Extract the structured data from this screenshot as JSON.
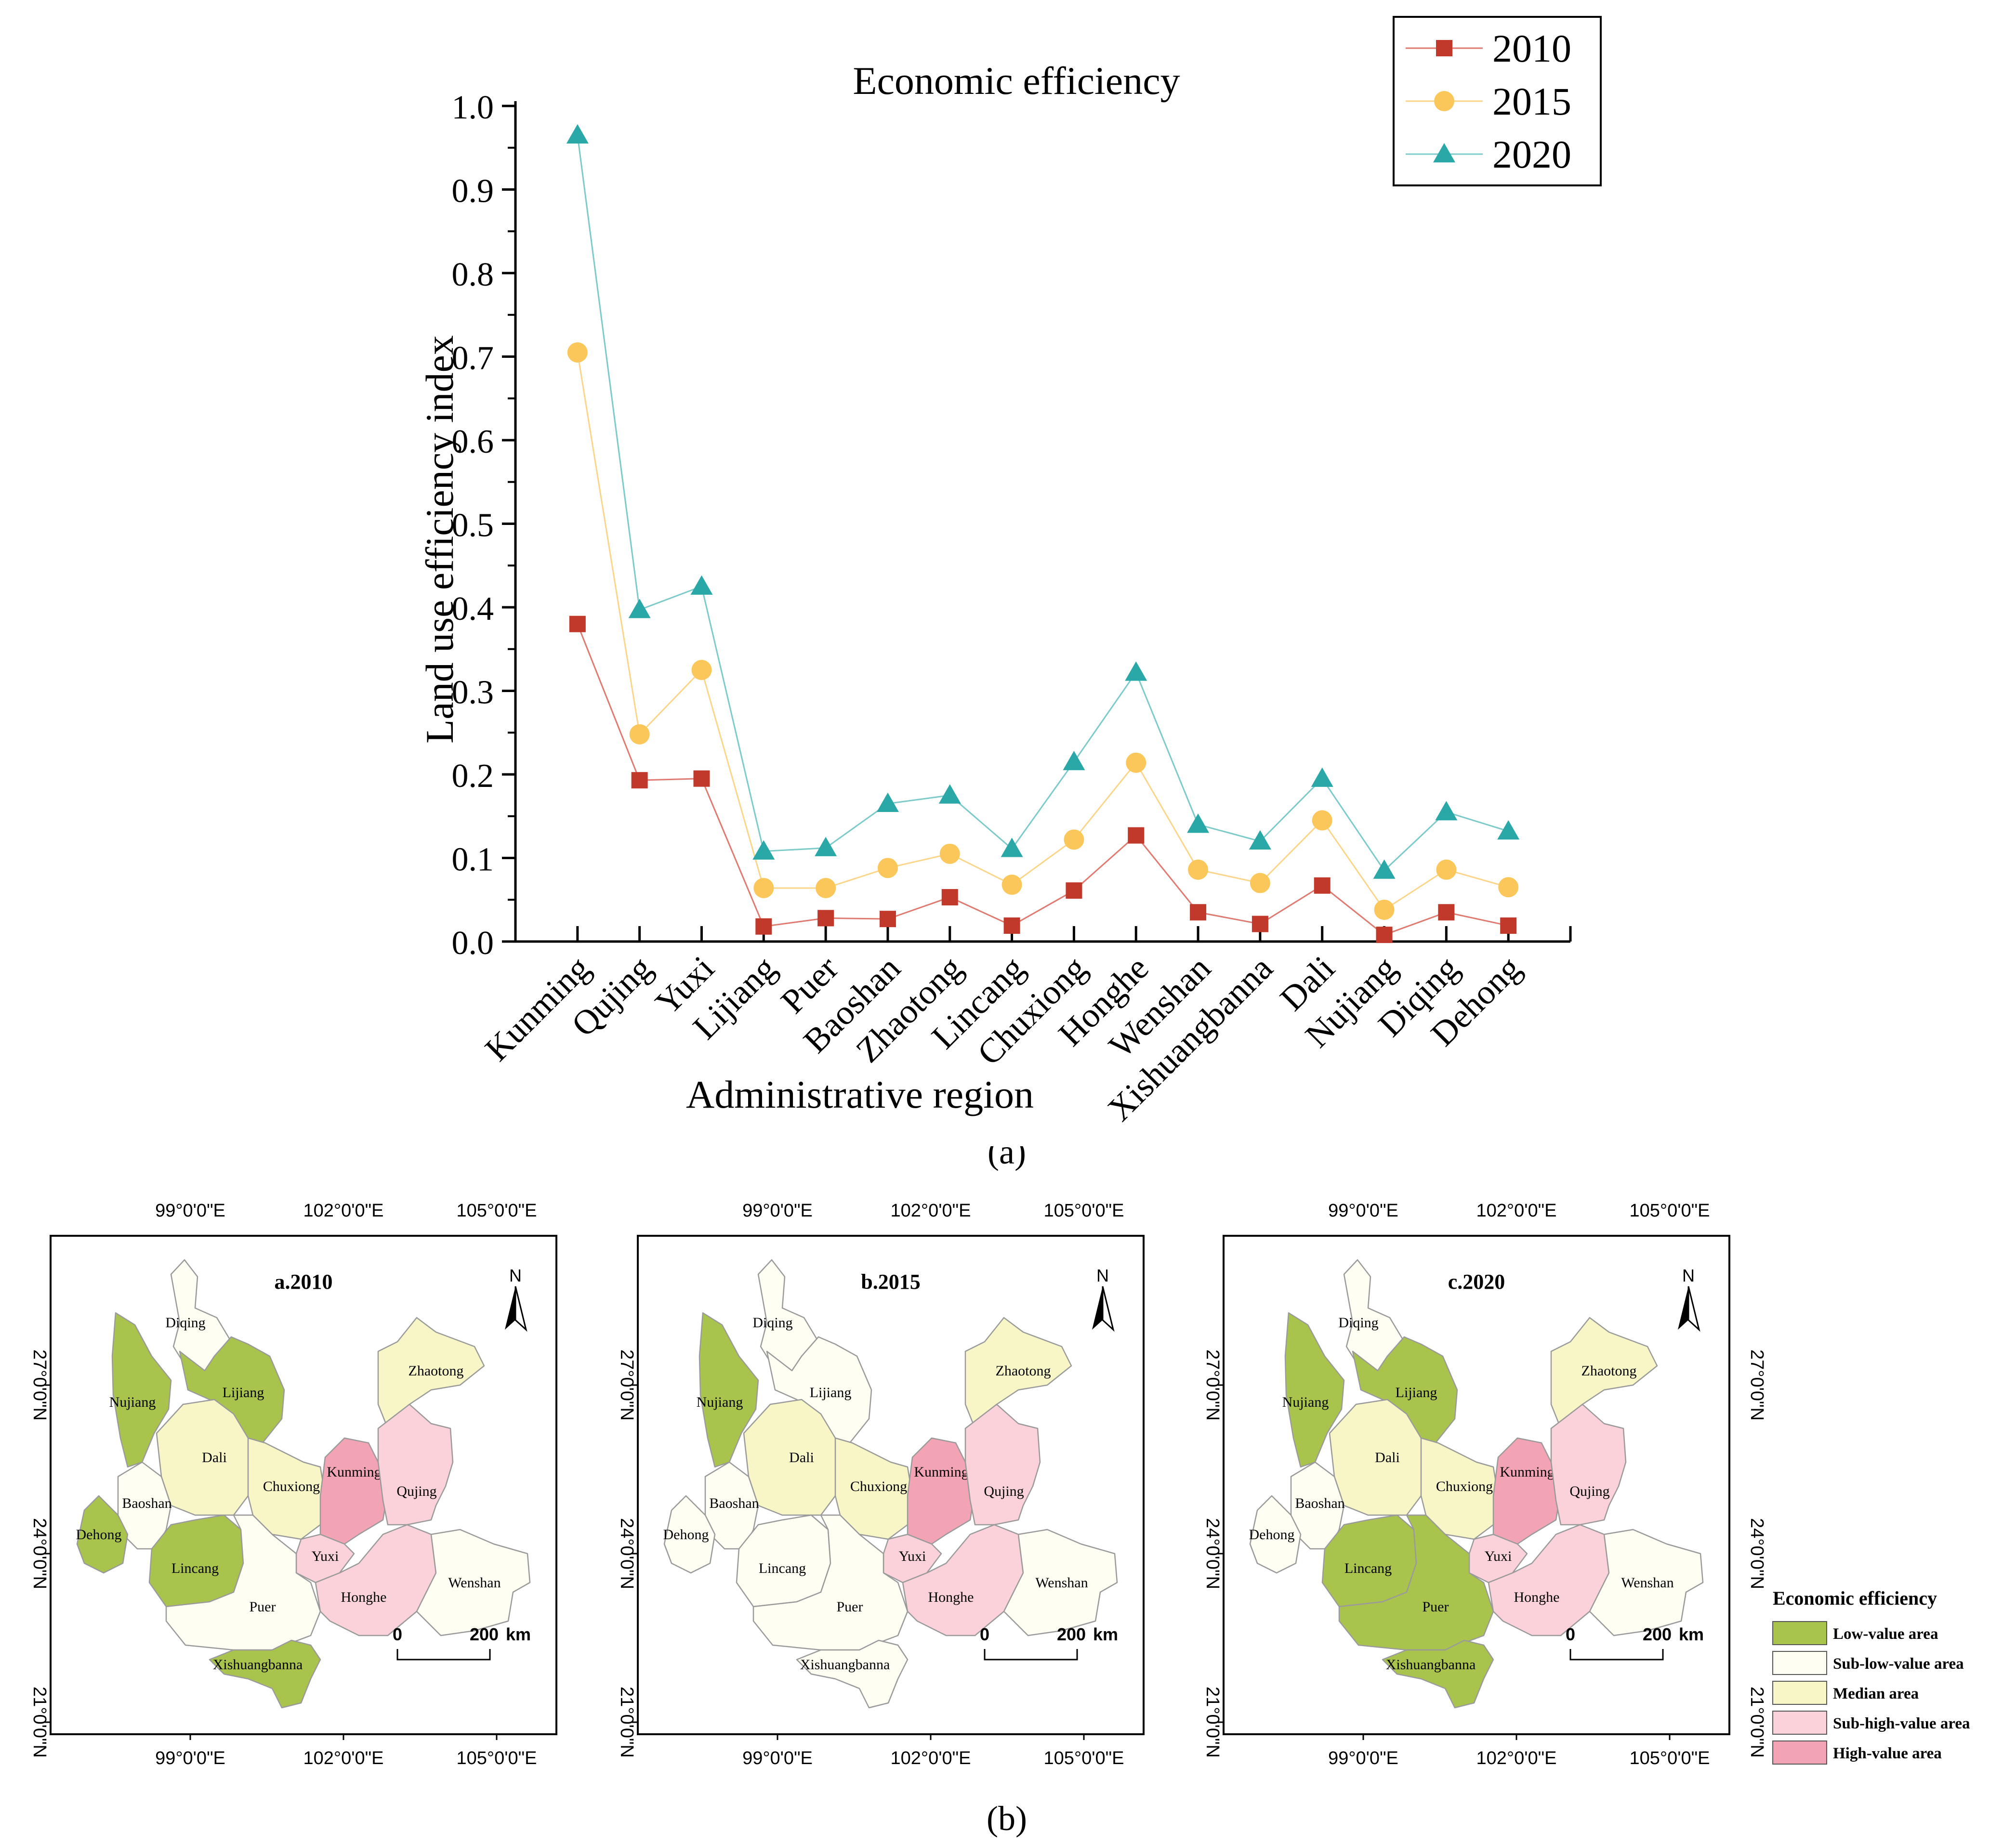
{
  "chart_data": {
    "type": "line",
    "title": "Economic efficiency",
    "xlabel": "Administrative region",
    "ylabel": "Land use efficiency index",
    "ylim": [
      0,
      1.0
    ],
    "yticks": [
      "0.0",
      "0.1",
      "0.2",
      "0.3",
      "0.4",
      "0.5",
      "0.6",
      "0.7",
      "0.8",
      "0.9",
      "1.0"
    ],
    "categories": [
      "Kunming",
      "Qujing",
      "Yuxi",
      "Lijiang",
      "Puer",
      "Baoshan",
      "Zhaotong",
      "Lincang",
      "Chuxiong",
      "Honghe",
      "Wenshan",
      "Xishuangbanna",
      "Dali",
      "Nujiang",
      "Diqing",
      "Dehong"
    ],
    "series": [
      {
        "name": "2010",
        "marker": "square",
        "color": "#c0392b",
        "line_color": "#e07a70",
        "values": [
          0.38,
          0.193,
          0.195,
          0.018,
          0.028,
          0.027,
          0.053,
          0.019,
          0.061,
          0.127,
          0.035,
          0.021,
          0.067,
          0.008,
          0.035,
          0.019
        ]
      },
      {
        "name": "2015",
        "marker": "circle",
        "color": "#fcc75a",
        "line_color": "#fad58a",
        "values": [
          0.705,
          0.248,
          0.325,
          0.064,
          0.064,
          0.088,
          0.105,
          0.068,
          0.122,
          0.214,
          0.086,
          0.07,
          0.145,
          0.038,
          0.086,
          0.065
        ]
      },
      {
        "name": "2020",
        "marker": "triangle",
        "color": "#2aa8a8",
        "line_color": "#7ccaca",
        "values": [
          0.965,
          0.397,
          0.425,
          0.108,
          0.112,
          0.165,
          0.175,
          0.111,
          0.215,
          0.322,
          0.14,
          0.12,
          0.195,
          0.085,
          0.155,
          0.132
        ]
      }
    ],
    "legend_position": "top-right"
  },
  "caption_a": "(a)",
  "caption_b": "(b)",
  "maps": {
    "top_lon_labels": [
      "99°0'0\"E",
      "102°0'0\"E",
      "105°0'0\"E"
    ],
    "bottom_lon_labels": [
      "99°0'0\"E",
      "102°0'0\"E",
      "105°0'0\"E"
    ],
    "lat_labels": [
      "27°0'0\"N",
      "24°0'0\"N",
      "21°0'0\"N"
    ],
    "north_label": "N",
    "scale_zero": "0",
    "scale_max": "200",
    "scale_unit": "km",
    "colors": {
      "low": "#a9c44d",
      "sublow": "#fefef2",
      "median": "#f8f6c6",
      "subhigh": "#fbd2da",
      "high": "#f2a4b4"
    },
    "panels": [
      {
        "title": "a.2010",
        "classes": {
          "Diqing": "sublow",
          "Nujiang": "low",
          "Lijiang": "low",
          "Zhaotong": "median",
          "Dali": "median",
          "Chuxiong": "median",
          "Kunming": "high",
          "Qujing": "subhigh",
          "Baoshan": "sublow",
          "Dehong": "low",
          "Lincang": "low",
          "Yuxi": "subhigh",
          "Puer": "sublow",
          "Honghe": "subhigh",
          "Wenshan": "sublow",
          "Xishuangbanna": "low"
        }
      },
      {
        "title": "b.2015",
        "classes": {
          "Diqing": "sublow",
          "Nujiang": "low",
          "Lijiang": "sublow",
          "Zhaotong": "median",
          "Dali": "median",
          "Chuxiong": "median",
          "Kunming": "high",
          "Qujing": "subhigh",
          "Baoshan": "sublow",
          "Dehong": "sublow",
          "Lincang": "sublow",
          "Yuxi": "subhigh",
          "Puer": "sublow",
          "Honghe": "subhigh",
          "Wenshan": "sublow",
          "Xishuangbanna": "sublow"
        }
      },
      {
        "title": "c.2020",
        "classes": {
          "Diqing": "sublow",
          "Nujiang": "low",
          "Lijiang": "low",
          "Zhaotong": "median",
          "Dali": "median",
          "Chuxiong": "median",
          "Kunming": "high",
          "Qujing": "subhigh",
          "Baoshan": "sublow",
          "Dehong": "sublow",
          "Lincang": "low",
          "Yuxi": "subhigh",
          "Puer": "low",
          "Honghe": "subhigh",
          "Wenshan": "sublow",
          "Xishuangbanna": "low"
        }
      }
    ],
    "legend": {
      "title": "Economic efficiency",
      "items": [
        {
          "key": "low",
          "label": "Low-value area"
        },
        {
          "key": "sublow",
          "label": "Sub-low-value area"
        },
        {
          "key": "median",
          "label": "Median area"
        },
        {
          "key": "subhigh",
          "label": "Sub-high-value area"
        },
        {
          "key": "high",
          "label": "High-value area"
        }
      ]
    }
  }
}
